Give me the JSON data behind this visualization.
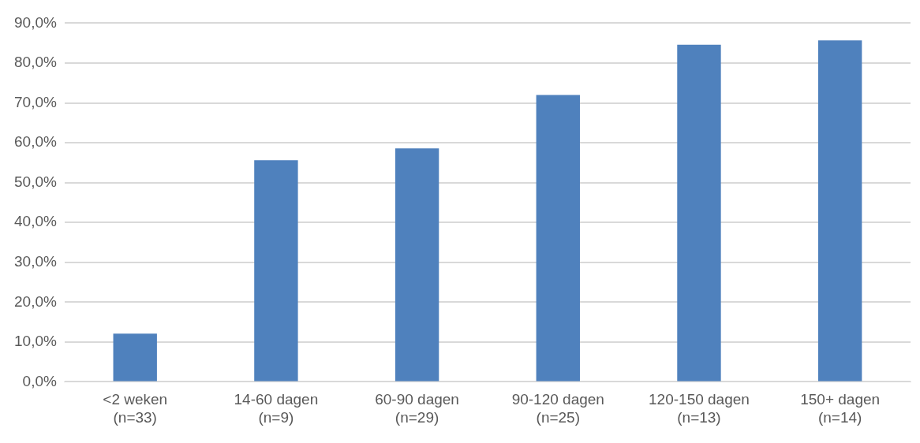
{
  "chart_data": {
    "type": "bar",
    "categories": [
      "<2 weken\n(n=33)",
      "14-60 dagen\n(n=9)",
      "60-90 dagen\n(n=29)",
      "90-120 dagen\n(n=25)",
      "120-150 dagen\n(n=13)",
      "150+ dagen\n(n=14)"
    ],
    "values": [
      12.1,
      55.6,
      58.6,
      72.0,
      84.6,
      85.7
    ],
    "color": "#4f81bd",
    "ylim": [
      0,
      90
    ],
    "yticks": [
      {
        "value": 0,
        "label": "0,0%"
      },
      {
        "value": 10,
        "label": "10,0%"
      },
      {
        "value": 20,
        "label": "20,0%"
      },
      {
        "value": 30,
        "label": "30,0%"
      },
      {
        "value": 40,
        "label": "40,0%"
      },
      {
        "value": 50,
        "label": "50,0%"
      },
      {
        "value": 60,
        "label": "60,0%"
      },
      {
        "value": 70,
        "label": "70,0%"
      },
      {
        "value": 80,
        "label": "80,0%"
      },
      {
        "value": 90,
        "label": "90,0%"
      }
    ],
    "grid": "y"
  }
}
